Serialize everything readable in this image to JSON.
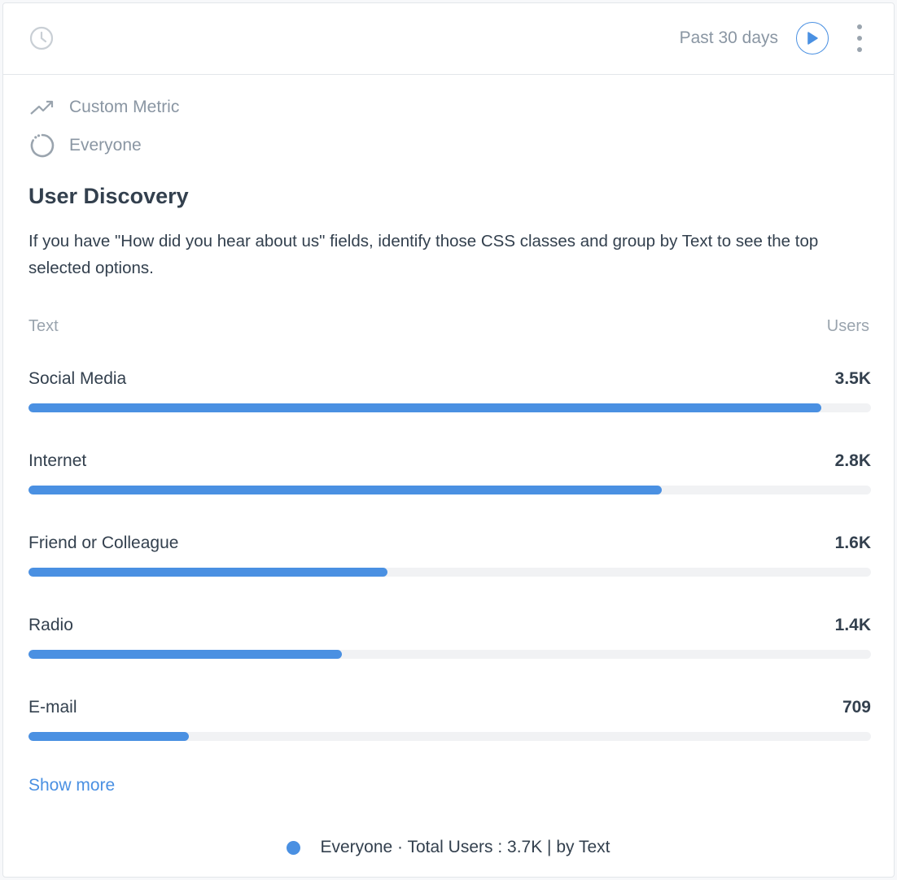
{
  "header": {
    "date_range": "Past 30 days",
    "icons": {
      "history": "clock-icon",
      "run": "play-icon",
      "menu": "more-vertical-icon"
    }
  },
  "meta": {
    "metric_label": "Custom Metric",
    "metric_icon": "trend-up-icon",
    "segment_label": "Everyone",
    "segment_icon": "dotted-circle-icon"
  },
  "widget": {
    "title": "User Discovery",
    "description": "If you have \"How did you hear about us\" fields, identify those CSS classes and group by Text to see the top selected options."
  },
  "table": {
    "col_left": "Text",
    "col_right": "Users",
    "rows": [
      {
        "label": "Social Media",
        "value": "3.5K",
        "fraction": 0.941
      },
      {
        "label": "Internet",
        "value": "2.8K",
        "fraction": 0.752
      },
      {
        "label": "Friend or Colleague",
        "value": "1.6K",
        "fraction": 0.426
      },
      {
        "label": "Radio",
        "value": "1.4K",
        "fraction": 0.372
      },
      {
        "label": "E-mail",
        "value": "709",
        "fraction": 0.19
      }
    ]
  },
  "show_more": "Show more",
  "legend": {
    "text": "Everyone · Total Users : 3.7K | by Text"
  },
  "colors": {
    "accent": "#4a90e2",
    "track": "#f1f2f4",
    "text": "#33404e",
    "muted": "#8a96a3"
  }
}
